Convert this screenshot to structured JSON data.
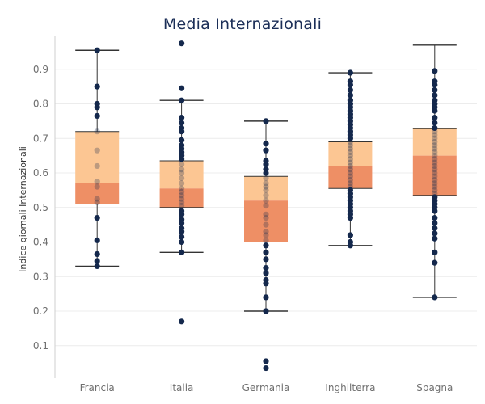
{
  "chart_data": {
    "type": "box",
    "title": "Media Internazionali",
    "xlabel": "",
    "ylabel": "Indice giornali Internazionali",
    "ylim": [
      0,
      0.97
    ],
    "yticks": [
      0.1,
      0.2,
      0.3,
      0.4,
      0.5,
      0.6,
      0.7,
      0.8,
      0.9
    ],
    "grid": true,
    "categories": [
      "Francia",
      "Italia",
      "Germania",
      "Inghilterra",
      "Spagna"
    ],
    "boxes": [
      {
        "q1": 0.51,
        "median": 0.57,
        "q3": 0.72,
        "whisker_low": 0.33,
        "whisker_high": 0.955
      },
      {
        "q1": 0.5,
        "median": 0.555,
        "q3": 0.635,
        "whisker_low": 0.37,
        "whisker_high": 0.81
      },
      {
        "q1": 0.4,
        "median": 0.52,
        "q3": 0.59,
        "whisker_low": 0.2,
        "whisker_high": 0.75
      },
      {
        "q1": 0.555,
        "median": 0.62,
        "q3": 0.69,
        "whisker_low": 0.39,
        "whisker_high": 0.89
      },
      {
        "q1": 0.535,
        "median": 0.65,
        "q3": 0.728,
        "whisker_low": 0.24,
        "whisker_high": 0.97
      }
    ],
    "points": [
      [
        0.955,
        0.85,
        0.8,
        0.79,
        0.765,
        0.72,
        0.665,
        0.62,
        0.575,
        0.56,
        0.525,
        0.515,
        0.47,
        0.405,
        0.365,
        0.345,
        0.33
      ],
      [
        0.975,
        0.845,
        0.81,
        0.76,
        0.745,
        0.73,
        0.72,
        0.695,
        0.68,
        0.67,
        0.66,
        0.65,
        0.64,
        0.625,
        0.61,
        0.6,
        0.585,
        0.57,
        0.555,
        0.545,
        0.535,
        0.525,
        0.515,
        0.505,
        0.49,
        0.48,
        0.465,
        0.455,
        0.44,
        0.43,
        0.415,
        0.4,
        0.37,
        0.17
      ],
      [
        0.75,
        0.685,
        0.665,
        0.635,
        0.625,
        0.61,
        0.6,
        0.585,
        0.57,
        0.56,
        0.55,
        0.535,
        0.52,
        0.505,
        0.48,
        0.47,
        0.45,
        0.43,
        0.42,
        0.405,
        0.39,
        0.37,
        0.35,
        0.325,
        0.31,
        0.29,
        0.28,
        0.24,
        0.2,
        0.055,
        0.035
      ],
      [
        0.89,
        0.865,
        0.855,
        0.84,
        0.825,
        0.81,
        0.8,
        0.79,
        0.78,
        0.77,
        0.76,
        0.75,
        0.74,
        0.73,
        0.72,
        0.71,
        0.7,
        0.69,
        0.68,
        0.67,
        0.66,
        0.65,
        0.64,
        0.63,
        0.62,
        0.61,
        0.6,
        0.59,
        0.58,
        0.57,
        0.56,
        0.55,
        0.54,
        0.53,
        0.52,
        0.51,
        0.5,
        0.49,
        0.48,
        0.47,
        0.42,
        0.4,
        0.39
      ],
      [
        0.895,
        0.865,
        0.855,
        0.84,
        0.825,
        0.81,
        0.8,
        0.79,
        0.78,
        0.76,
        0.745,
        0.73,
        0.72,
        0.71,
        0.7,
        0.69,
        0.68,
        0.67,
        0.66,
        0.65,
        0.64,
        0.63,
        0.62,
        0.61,
        0.6,
        0.59,
        0.58,
        0.57,
        0.56,
        0.55,
        0.54,
        0.53,
        0.52,
        0.51,
        0.5,
        0.49,
        0.47,
        0.455,
        0.44,
        0.425,
        0.41,
        0.37,
        0.34,
        0.24
      ]
    ],
    "colors": {
      "box_upper": "#fcc693",
      "box_lower": "#ee8f65",
      "point": "#14284c",
      "whisker": "#333333",
      "grid": "#ececec",
      "axis": "#cfcfcf"
    }
  }
}
